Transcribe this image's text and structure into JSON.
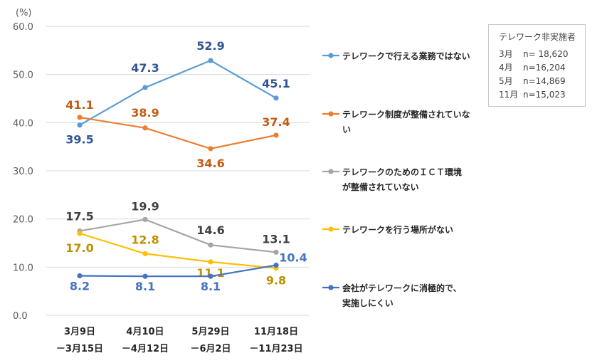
{
  "chart_data": {
    "type": "line",
    "unit_label": "(%)",
    "categories": [
      [
        "3月9日",
        "－3月15日"
      ],
      [
        "4月10日",
        "－4月12日"
      ],
      [
        "5月29日",
        "－6月2日"
      ],
      [
        "11月18日",
        "－11月23日"
      ]
    ],
    "ylim": [
      0,
      60
    ],
    "yticks": [
      "0.0",
      "10.0",
      "20.0",
      "30.0",
      "40.0",
      "50.0",
      "60.0"
    ],
    "grid": true,
    "legend_position": "right",
    "series": [
      {
        "name": [
          "テレワークで行える業務ではない"
        ],
        "values": [
          39.5,
          47.3,
          52.9,
          45.1
        ],
        "labels": [
          "39.5",
          "47.3",
          "52.9",
          "45.1"
        ],
        "color": "#5b9bd5",
        "label_color": "#2f5597"
      },
      {
        "name": [
          "テレワーク制度が整備されていな",
          "い"
        ],
        "values": [
          41.1,
          38.9,
          34.6,
          37.4
        ],
        "labels": [
          "41.1",
          "38.9",
          "34.6",
          "37.4"
        ],
        "color": "#ed7d31",
        "label_color": "#c55a11"
      },
      {
        "name": [
          "テレワークのためのＩＣＴ環境",
          "が整備されていない"
        ],
        "values": [
          17.5,
          19.9,
          14.6,
          13.1
        ],
        "labels": [
          "17.5",
          "19.9",
          "14.6",
          "13.1"
        ],
        "color": "#a5a5a5",
        "label_color": "#404040"
      },
      {
        "name": [
          "テレワークを行う場所がない"
        ],
        "values": [
          17.0,
          12.8,
          11.1,
          9.8
        ],
        "labels": [
          "17.0",
          "12.8",
          "11.1",
          "9.8"
        ],
        "color": "#ffc000",
        "label_color": "#bf9000"
      },
      {
        "name": [
          "会社がテレワークに消極的で、",
          "実施しにくい"
        ],
        "values": [
          8.2,
          8.1,
          8.1,
          10.4
        ],
        "labels": [
          "8.2",
          "8.1",
          "8.1",
          "10.4"
        ],
        "color": "#4472c4",
        "label_color": "#4472c4"
      }
    ]
  },
  "sample_box": {
    "title": "テレワーク非実施者",
    "rows": [
      {
        "month": "3月",
        "n": "n= 18,620"
      },
      {
        "month": "4月",
        "n": "n=16,204"
      },
      {
        "month": "5月",
        "n": "n=14,869"
      },
      {
        "month": "11月",
        "n": "n=15,023"
      }
    ]
  }
}
